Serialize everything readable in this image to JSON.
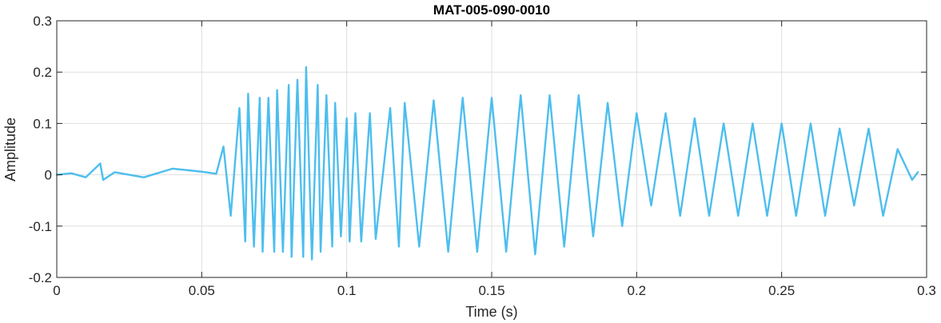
{
  "chart_data": {
    "type": "line",
    "title": "MAT-005-090-0010",
    "xlabel": "Time (s)",
    "ylabel": "Amplitude",
    "xlim": [
      0,
      0.3
    ],
    "ylim": [
      -0.2,
      0.3
    ],
    "xticks": [
      0,
      0.05,
      0.1,
      0.15,
      0.2,
      0.25,
      0.3
    ],
    "yticks": [
      -0.2,
      -0.1,
      0,
      0.1,
      0.2,
      0.3
    ],
    "xtick_labels": [
      "0",
      "0.05",
      "0.1",
      "0.15",
      "0.2",
      "0.25",
      "0.3"
    ],
    "ytick_labels": [
      "-0.2",
      "-0.1",
      "0",
      "0.1",
      "0.2",
      "0.3"
    ],
    "grid": true,
    "line_color": "#4DBEEE",
    "series": [
      {
        "x": [
          0,
          0.005,
          0.01,
          0.015,
          0.016,
          0.02,
          0.03,
          0.04,
          0.05,
          0.055,
          0.0575,
          0.06,
          0.063,
          0.065,
          0.066,
          0.068,
          0.07,
          0.071,
          0.073,
          0.075,
          0.076,
          0.078,
          0.08,
          0.081,
          0.083,
          0.085,
          0.086,
          0.088,
          0.09,
          0.091,
          0.093,
          0.095,
          0.096,
          0.098,
          0.1,
          0.101,
          0.103,
          0.105,
          0.108,
          0.11,
          0.115,
          0.118,
          0.12,
          0.125,
          0.13,
          0.135,
          0.14,
          0.145,
          0.15,
          0.155,
          0.16,
          0.165,
          0.17,
          0.175,
          0.18,
          0.185,
          0.19,
          0.195,
          0.2,
          0.205,
          0.21,
          0.215,
          0.22,
          0.225,
          0.23,
          0.235,
          0.24,
          0.245,
          0.25,
          0.255,
          0.26,
          0.265,
          0.27,
          0.275,
          0.28,
          0.285,
          0.29,
          0.295,
          0.297
        ],
        "y": [
          0,
          0.003,
          -0.005,
          0.022,
          -0.01,
          0.005,
          -0.005,
          0.012,
          0.006,
          0.002,
          0.055,
          -0.08,
          0.13,
          -0.13,
          0.158,
          -0.14,
          0.15,
          -0.15,
          0.15,
          -0.15,
          0.165,
          -0.15,
          0.175,
          -0.16,
          0.185,
          -0.16,
          0.21,
          -0.165,
          0.175,
          -0.15,
          0.155,
          -0.14,
          0.14,
          -0.12,
          0.11,
          -0.13,
          0.12,
          -0.13,
          0.12,
          -0.125,
          0.13,
          -0.14,
          0.14,
          -0.14,
          0.145,
          -0.15,
          0.15,
          -0.15,
          0.15,
          -0.15,
          0.155,
          -0.155,
          0.155,
          -0.14,
          0.155,
          -0.12,
          0.14,
          -0.1,
          0.12,
          -0.06,
          0.12,
          -0.08,
          0.11,
          -0.08,
          0.1,
          -0.08,
          0.1,
          -0.08,
          0.1,
          -0.08,
          0.1,
          -0.08,
          0.09,
          -0.06,
          0.09,
          -0.08,
          0.05,
          -0.01,
          0.005
        ]
      }
    ]
  }
}
